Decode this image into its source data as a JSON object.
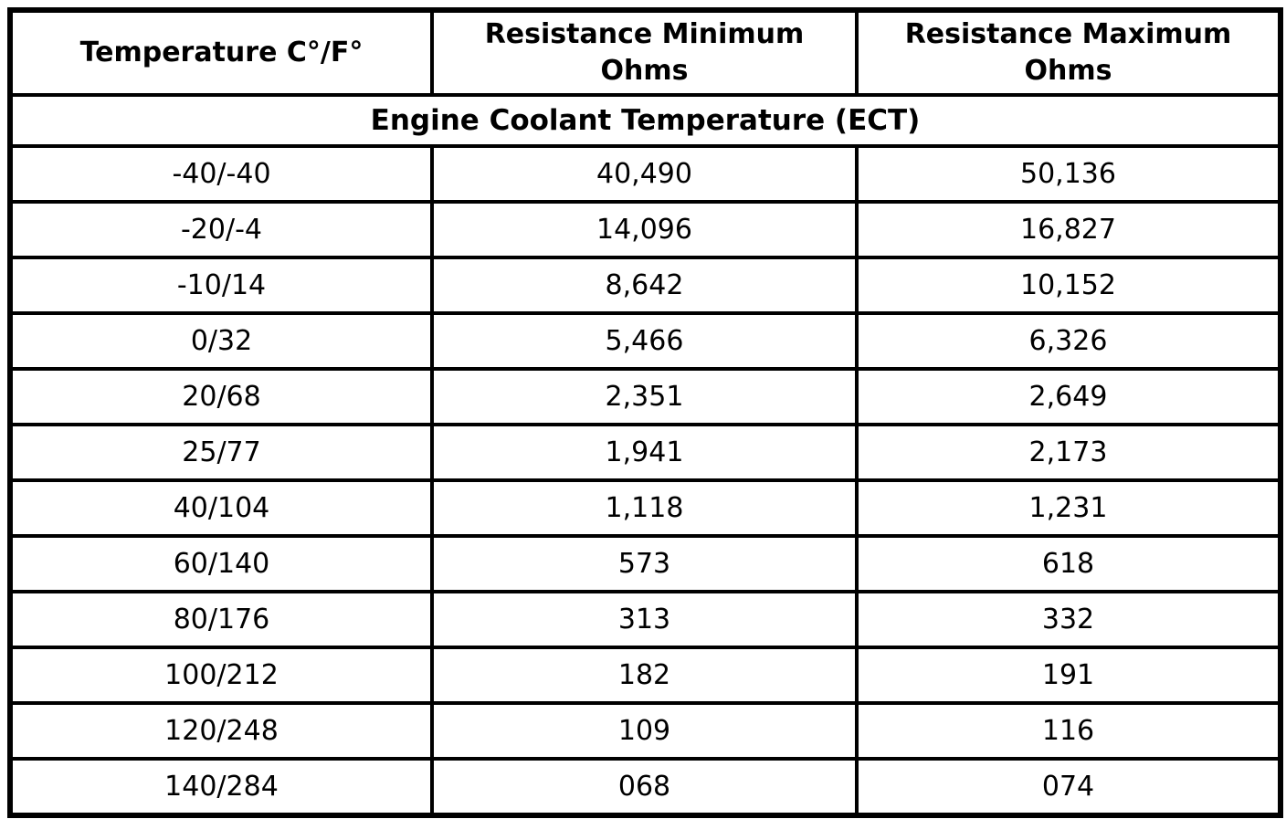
{
  "table": {
    "columns": [
      "Temperature C°/F°",
      "Resistance Minimum\nOhms",
      "Resistance Maximum\nOhms"
    ],
    "section_title": "Engine Coolant Temperature (ECT)",
    "rows": [
      [
        "-40/-40",
        "40,490",
        "50,136"
      ],
      [
        "-20/-4",
        "14,096",
        "16,827"
      ],
      [
        "-10/14",
        "8,642",
        "10,152"
      ],
      [
        "0/32",
        "5,466",
        "6,326"
      ],
      [
        "20/68",
        "2,351",
        "2,649"
      ],
      [
        "25/77",
        "1,941",
        "2,173"
      ],
      [
        "40/104",
        "1,118",
        "1,231"
      ],
      [
        "60/140",
        "573",
        "618"
      ],
      [
        "80/176",
        "313",
        "332"
      ],
      [
        "100/212",
        "182",
        "191"
      ],
      [
        "120/248",
        "109",
        "116"
      ],
      [
        "140/284",
        "068",
        "074"
      ]
    ],
    "colors": {
      "border": "#000000",
      "text": "#000000",
      "background": "#ffffff"
    }
  }
}
